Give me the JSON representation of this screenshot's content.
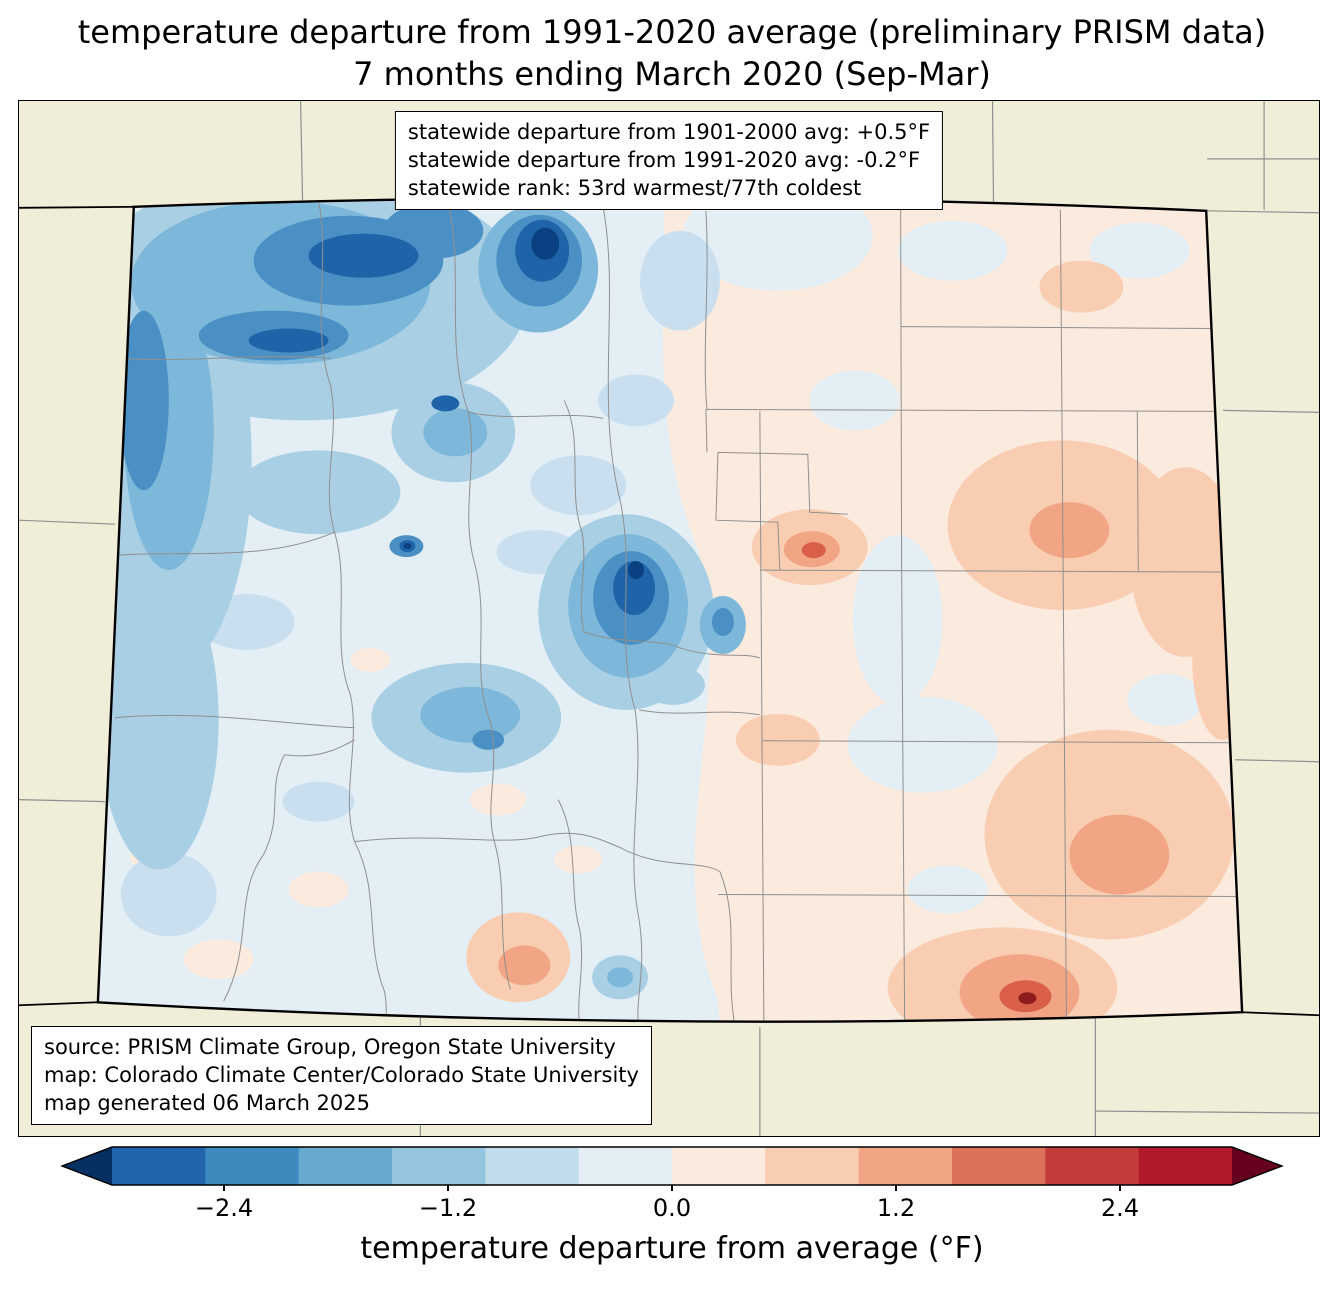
{
  "title": {
    "line1": "temperature departure from 1991-2020 average (preliminary PRISM data)",
    "line2": "7 months ending March 2020 (Sep-Mar)"
  },
  "stats_box": {
    "line1": "statewide departure from 1901-2000 avg: +0.5°F",
    "line2": "statewide departure from 1991-2020 avg: -0.2°F",
    "line3": "statewide rank: 53rd warmest/77th coldest"
  },
  "source_box": {
    "line1": "source: PRISM Climate Group, Oregon State University",
    "line2": "map: Colorado Climate Center/Colorado State University",
    "line3": "map generated 06 March 2025"
  },
  "colorbar": {
    "label": "temperature departure from average (°F)",
    "range": [
      -3.0,
      3.0
    ],
    "ticks": [
      {
        "value": -2.4,
        "label": "−2.4"
      },
      {
        "value": -1.2,
        "label": "−1.2"
      },
      {
        "value": 0.0,
        "label": "0.0"
      },
      {
        "value": 1.2,
        "label": "1.2"
      },
      {
        "value": 2.4,
        "label": "2.4"
      }
    ],
    "segments": [
      "#2166ac",
      "#3c8abe",
      "#67a9cf",
      "#95c5de",
      "#c1dceb",
      "#e4eff5",
      "#fbeade",
      "#f9cdb1",
      "#f1a584",
      "#dd7059",
      "#c43c3c",
      "#b2182b"
    ],
    "arrow_left": "#053061",
    "arrow_right": "#67001f"
  },
  "map": {
    "region": "Colorado with county boundaries",
    "palette": {
      "bg": "#f0edd9",
      "base": "#e4eff5",
      "warm": "#fbeade",
      "warm1": "#f9cdb1",
      "warm2": "#f1a584",
      "warm3": "#d95f49",
      "warm4": "#8e1c1c",
      "blue1": "#c9dff0",
      "blue2": "#a9cfe4",
      "blue3": "#7db8da",
      "blue4": "#4a90c4",
      "blue5": "#1f63a8",
      "blue6": "#0b4083",
      "county": "#8f8f8f",
      "border": "#000000"
    }
  }
}
